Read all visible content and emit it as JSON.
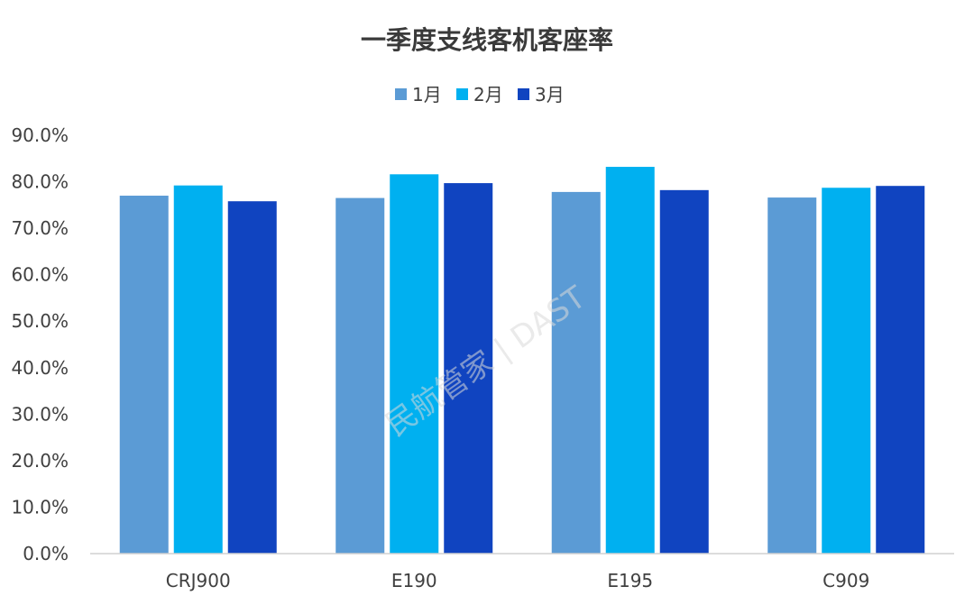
{
  "chart_data": {
    "type": "bar",
    "title": "一季度支线客机客座率",
    "categories": [
      "CRJ900",
      "E190",
      "E195",
      "C909"
    ],
    "series": [
      {
        "name": "1月",
        "color": "#5b9bd5",
        "values": [
          77.0,
          76.5,
          77.8,
          76.6
        ]
      },
      {
        "name": "2月",
        "color": "#00b0f0",
        "values": [
          79.2,
          81.6,
          83.2,
          78.7
        ]
      },
      {
        "name": "3月",
        "color": "#1044c0",
        "values": [
          75.8,
          79.7,
          78.2,
          79.1
        ]
      }
    ],
    "yticks": [
      "0.0%",
      "10.0%",
      "20.0%",
      "30.0%",
      "40.0%",
      "50.0%",
      "60.0%",
      "70.0%",
      "80.0%",
      "90.0%"
    ],
    "ylim": [
      0,
      90
    ],
    "xlabel": "",
    "ylabel": "",
    "legend": "top-center",
    "grid": false
  },
  "watermark": "民航管家 | DAST"
}
